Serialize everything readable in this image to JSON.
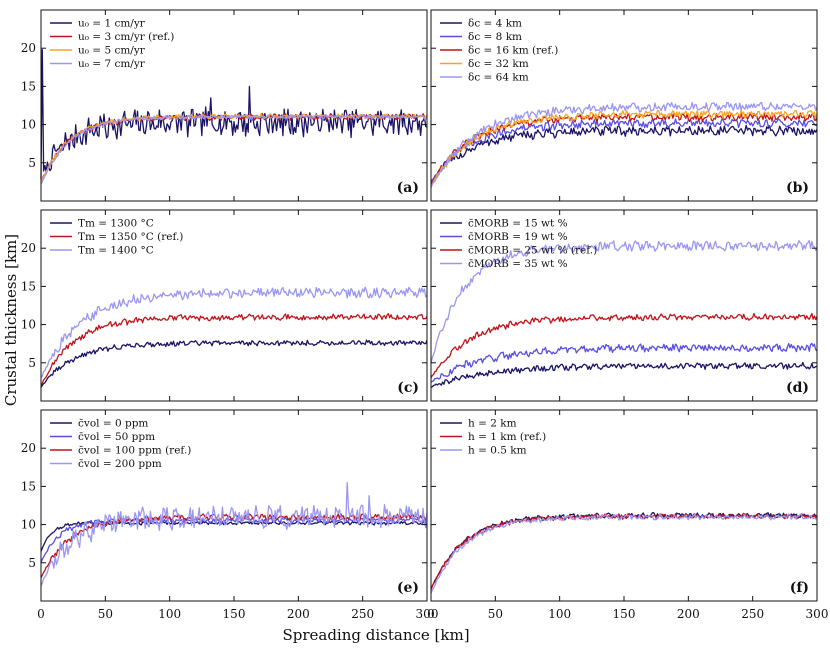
{
  "figure": {
    "ylabel": "Crustal thickness [km]",
    "xlabel": "Spreading distance [km]",
    "colors": {
      "navy": "#1b1464",
      "red": "#c0141c",
      "orange": "#f5a623",
      "purple": "#5a4ee0",
      "lavender": "#9a97f2"
    }
  },
  "chart_data": [
    {
      "type": "line",
      "panel": "(a)",
      "xlim": [
        0,
        300
      ],
      "ylim": [
        0,
        25
      ],
      "xticks": [
        "0",
        "50",
        "100",
        "150",
        "200",
        "250",
        "300"
      ],
      "yticks": [
        "5",
        "10",
        "15",
        "20"
      ],
      "legend_location": "top-left",
      "series": [
        {
          "name": "u₀ = 1 cm/yr",
          "color": "#1b1464",
          "plateau": 10.3,
          "rise": 20,
          "start": 3.0,
          "noise": 1.6,
          "spikes": [
            [
              1,
              19.8
            ],
            [
              132,
              13.5
            ],
            [
              162,
              15.0
            ]
          ]
        },
        {
          "name": "u₀ = 3 cm/yr (ref.)",
          "color": "#c0141c",
          "plateau": 11.0,
          "rise": 22,
          "start": 2.5,
          "noise": 0.35
        },
        {
          "name": "u₀ = 5 cm/yr",
          "color": "#f5a623",
          "plateau": 11.1,
          "rise": 22,
          "start": 2.5,
          "noise": 0.25
        },
        {
          "name": "u₀ = 7 cm/yr",
          "color": "#9a97f2",
          "plateau": 11.0,
          "rise": 22,
          "start": 2.2,
          "noise": 0.25
        }
      ]
    },
    {
      "type": "line",
      "panel": "(b)",
      "xlim": [
        0,
        300
      ],
      "ylim": [
        0,
        25
      ],
      "xticks": [
        "0",
        "50",
        "100",
        "150",
        "200",
        "250",
        "300"
      ],
      "yticks": [
        "5",
        "10",
        "15",
        "20"
      ],
      "legend_location": "top-left",
      "series": [
        {
          "name": "δc = 4 km",
          "color": "#1b1464",
          "plateau": 9.2,
          "rise": 30,
          "start": 2.5,
          "noise": 0.55
        },
        {
          "name": "δc = 8 km",
          "color": "#5a4ee0",
          "plateau": 10.2,
          "rise": 30,
          "start": 2.5,
          "noise": 0.5
        },
        {
          "name": "δc = 16 km (ref.)",
          "color": "#c0141c",
          "plateau": 11.0,
          "rise": 30,
          "start": 2.2,
          "noise": 0.45
        },
        {
          "name": "δc = 32 km",
          "color": "#f5a623",
          "plateau": 11.4,
          "rise": 32,
          "start": 2.0,
          "noise": 0.45
        },
        {
          "name": "δc = 64 km",
          "color": "#9a97f2",
          "plateau": 12.4,
          "rise": 34,
          "start": 1.8,
          "noise": 0.5
        }
      ]
    },
    {
      "type": "line",
      "panel": "(c)",
      "xlim": [
        0,
        300
      ],
      "ylim": [
        0,
        25
      ],
      "xticks": [
        "0",
        "50",
        "100",
        "150",
        "200",
        "250",
        "300"
      ],
      "yticks": [
        "5",
        "10",
        "15",
        "20"
      ],
      "legend_location": "top-left",
      "series": [
        {
          "name": "Tm = 1300 °C",
          "color": "#1b1464",
          "plateau": 7.6,
          "rise": 25,
          "start": 1.8,
          "noise": 0.3
        },
        {
          "name": "Tm = 1350 °C (ref.)",
          "color": "#c0141c",
          "plateau": 11.0,
          "rise": 25,
          "start": 2.0,
          "noise": 0.35
        },
        {
          "name": "Tm = 1400 °C",
          "color": "#9a97f2",
          "plateau": 14.2,
          "rise": 30,
          "start": 3.0,
          "noise": 0.6
        }
      ]
    },
    {
      "type": "line",
      "panel": "(d)",
      "xlim": [
        0,
        300
      ],
      "ylim": [
        0,
        25
      ],
      "xticks": [
        "0",
        "50",
        "100",
        "150",
        "200",
        "250",
        "300"
      ],
      "yticks": [
        "5",
        "10",
        "15",
        "20"
      ],
      "legend_location": "top-left",
      "series": [
        {
          "name": "c̄MORB = 15 wt %",
          "color": "#1b1464",
          "plateau": 4.6,
          "rise": 40,
          "start": 1.8,
          "noise": 0.35
        },
        {
          "name": "c̄MORB = 19 wt %",
          "color": "#5a4ee0",
          "plateau": 7.0,
          "rise": 40,
          "start": 2.5,
          "noise": 0.45
        },
        {
          "name": "c̄MORB = 25 wt % (ref.)",
          "color": "#c0141c",
          "plateau": 11.0,
          "rise": 30,
          "start": 3.0,
          "noise": 0.35
        },
        {
          "name": "c̄MORB = 35 wt %",
          "color": "#9a97f2",
          "plateau": 20.3,
          "rise": 25,
          "start": 5.0,
          "noise": 0.55
        }
      ]
    },
    {
      "type": "line",
      "panel": "(e)",
      "xlim": [
        0,
        300
      ],
      "ylim": [
        0,
        25
      ],
      "xticks": [
        "0",
        "50",
        "100",
        "150",
        "200",
        "250",
        "300"
      ],
      "yticks": [
        "5",
        "10",
        "15",
        "20"
      ],
      "legend_location": "top-left",
      "series": [
        {
          "name": "c̄vol = 0 ppm",
          "color": "#1b1464",
          "plateau": 10.2,
          "rise": 8,
          "start": 6.5,
          "noise": 0.2
        },
        {
          "name": "c̄vol = 50 ppm",
          "color": "#5a4ee0",
          "plateau": 10.6,
          "rise": 14,
          "start": 5.0,
          "noise": 0.3
        },
        {
          "name": "c̄vol = 100 ppm (ref.)",
          "color": "#c0141c",
          "plateau": 11.0,
          "rise": 22,
          "start": 3.0,
          "noise": 0.35
        },
        {
          "name": "c̄vol = 200 ppm",
          "color": "#9a97f2",
          "plateau": 11.0,
          "rise": 24,
          "start": 2.0,
          "noise": 1.3,
          "spikes": [
            [
              238,
              15.5
            ],
            [
              255,
              13.8
            ]
          ]
        }
      ]
    },
    {
      "type": "line",
      "panel": "(f)",
      "xlim": [
        0,
        300
      ],
      "ylim": [
        0,
        25
      ],
      "xticks": [
        "0",
        "50",
        "100",
        "150",
        "200",
        "250",
        "300"
      ],
      "yticks": [
        "5",
        "10",
        "15",
        "20"
      ],
      "legend_location": "top-left",
      "series": [
        {
          "name": "h = 2 km",
          "color": "#1b1464",
          "plateau": 11.2,
          "rise": 25,
          "start": 1.5,
          "noise": 0.3
        },
        {
          "name": "h = 1 km (ref.)",
          "color": "#c0141c",
          "plateau": 11.1,
          "rise": 25,
          "start": 1.5,
          "noise": 0.3
        },
        {
          "name": "h = 0.5 km",
          "color": "#9a97f2",
          "plateau": 11.0,
          "rise": 25,
          "start": 1.0,
          "noise": 0.3
        }
      ]
    }
  ]
}
